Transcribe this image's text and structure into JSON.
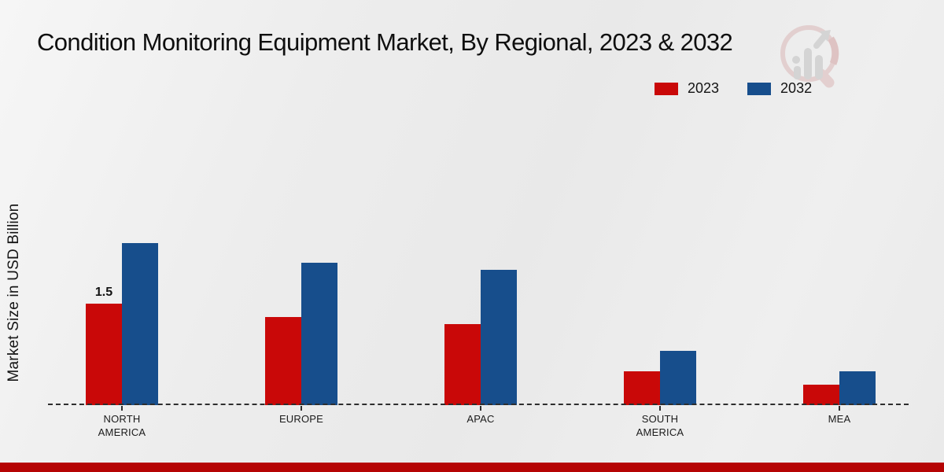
{
  "chart_data": {
    "type": "bar",
    "title": "Condition Monitoring Equipment Market, By Regional, 2023 & 2032",
    "ylabel": "Market Size in USD Billion",
    "xlabel": "",
    "categories": [
      "NORTH AMERICA",
      "EUROPE",
      "APAC",
      "SOUTH AMERICA",
      "MEA"
    ],
    "series": [
      {
        "name": "2023",
        "color": "#c90808",
        "values": [
          1.5,
          1.3,
          1.2,
          0.5,
          0.3
        ]
      },
      {
        "name": "2032",
        "color": "#174e8c",
        "values": [
          2.4,
          2.1,
          2.0,
          0.8,
          0.5
        ]
      }
    ],
    "bar_labels": [
      {
        "series": "2023",
        "category": "NORTH AMERICA",
        "text": "1.5"
      }
    ],
    "ylim": [
      0,
      2.8
    ],
    "grid": false,
    "legend_position": "top-right",
    "baseline_style": "dashed",
    "colors": {
      "axis_line": "#2e2e2e",
      "footer_strip": "#b50404",
      "background": "#ededed"
    }
  },
  "watermark": {
    "name": "magnifier-bar-chart-logo"
  }
}
